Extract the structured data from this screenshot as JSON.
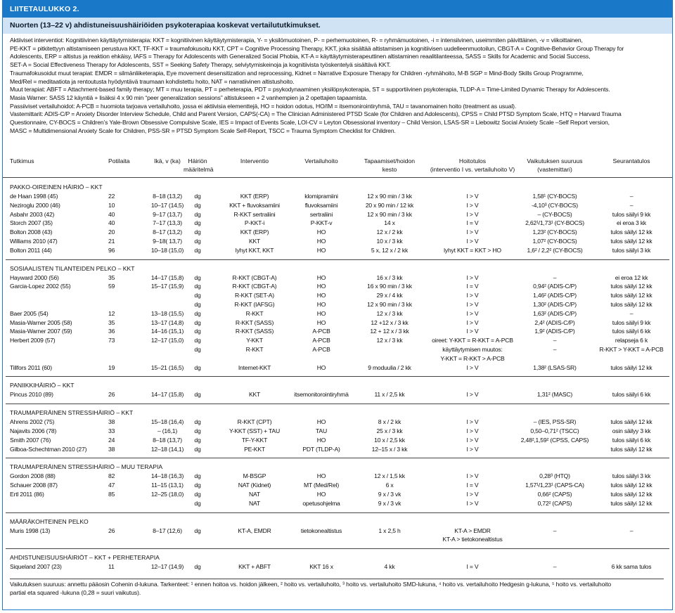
{
  "header": {
    "label": "LIITETAULUKKO 2."
  },
  "title": "Nuorten (13–22 v) ahdistuneisuushäiriöiden psykoterapiaa koskevat vertailututkimukset.",
  "abbreviations": [
    "Aktiiviset interventiot: Kognitiivinen käyttäytymisterapia: KKT = kognitiivinen käyttäytymisterapia, Y- = yksilömuotoinen,  P- = perhemuotoinen, R- = ryhmämuotoinen, -i = intensiivinen, useimmiten päivittäinen, -v = viikoittainen,",
    "PE-KKT = pitkitettyyn altistamiseen perustuva KKT, TF-KKT = traumafokusoitu KKT, CPT = Cognitive Processing Therapy, KKT, joka sisältää altistamisen ja kognitiivisen uudelleenmuotoilun, CBGT-A = Cognitive-Behavior Group Therapy for",
    "Adolescents, ERP = altistus ja reaktion ehkäisy, IAFS = Therapy for Adolescents with Generalized Social Phobia,  KT-A = käyttäytymisterapeuttinen altistaminen reaalitilanteessa, SASS = Skills for Academic and Social Success,",
    "SET-A = Social Effectiveness Therapy for Adolescents, SST = Seeking Safety Therapy, selviytymiskeinoja ja kognitiivista työskentelyä sisältävä KKT.",
    "Traumafokusoidut muut terapiat:  EMDR = silmänliiketerapia, Eye movement desensitization and reprocessing, Kidnet = Narrative Exposure Therapy for Children -ryhmähoito, M-B SGP = Mind-Body Skills Group Programme,",
    "Med/Rel = meditaatiota ja rentoutusta hyödyntävä traumaan kohdistettu hoito, NAT = narratiivinen altistushoito.",
    "Muut terapiat: ABFT = Attachment-based family therapy;  MT = muu terapia, PT = perheterapia, PDT = psykodynaaminen yksilöpsykoterapia, ST = supportiivinen psykoterapia, TLDP-A = Time-Limited Dynamic Therapy for Adolescents.",
    "Masia Warner: SASS 12 käyntiä + lisäksi 4 x 90 min “peer generalization sessions” altistukseen + 2 vanhempien ja 2 opettajien tapaamista.",
    "Passiiviset vertailuhoidot: A-PCB = huomiota tarjoava vertailuhoito, jossa ei aktiivisia elementtejä, HO = hoidon odotus, HO/IM = itsemonirointiryhmä, TAU = tavanomainen hoito (treatment as usual).",
    "Vastemittarit: ADIS-C/P = Anxiety Disorder Interview Schedule, Child and Parent Version, CAPS(-CA) = The Clinician Administered PTSD Scale (for Children and Adolescents), CPSS = Child PTSD Symptom Scale, HTQ = Harvard Trauma",
    "Questionnaire, CY-BOCS = Children’s Yale-Brown Obsessive Compulsive Scale, IES = Impact of Events Scale, LOI-CV = Leyton Obsessional inventory – Child Version, LSAS-SR = Liebowitz Social Anxiety Scale –Self Report version,",
    "MASC = Multidimensional Anxiety Scale for Children, PSS-SR = PTSD Symptom Scale Self-Report, TSCC = Trauma Symptom Checklist for Children."
  ],
  "table": {
    "headers": [
      {
        "l1": "Tutkimus",
        "l2": ""
      },
      {
        "l1": "Potilaita",
        "l2": ""
      },
      {
        "l1": "Ikä, v (ka)",
        "l2": ""
      },
      {
        "l1": "Häiriön",
        "l2": "määritelmä"
      },
      {
        "l1": "Interventio",
        "l2": ""
      },
      {
        "l1": "Vertailuhoito",
        "l2": ""
      },
      {
        "l1": "Tapaamiset/hoidon",
        "l2": "kesto"
      },
      {
        "l1": "Hoitotulos",
        "l2": "(interventio I vs. vertailuhoito V)"
      },
      {
        "l1": "Vaikutuksen suuruus",
        "l2": "(vastemittari)"
      },
      {
        "l1": "Seurantatulos",
        "l2": ""
      }
    ],
    "sections": [
      {
        "title": "PAKKO-OIREINEN HÄIRIÖ – KKT",
        "rows": [
          [
            "de Haan 1998 (45)",
            "22",
            "8–18 (13,2)",
            "dg",
            "KKT (ERP)",
            "klomipramiini",
            "12 x 90 min / 3 kk",
            "I > V",
            "1,58¹ (CY-BOCS)",
            "–"
          ],
          [
            "Neziroglu 2000 (46)",
            "10",
            "10–17 (14,5)",
            "dg",
            "KKT + fluvoksamiini",
            "fluvoksamiini",
            "20 x 90 min / 12 kk",
            "I > V",
            "-4,10³ (CY-BOCS)",
            "–"
          ],
          [
            "Asbahr 2003 (42)",
            "40",
            "9–17 (13,7)",
            "dg",
            "R-KKT sertraliini",
            "sertraliini",
            "12 x 90 min / 3 kk",
            "I > V",
            "– (CY-BOCS)",
            "tulos säilyi 9 kk"
          ],
          [
            "Storch 2007 (35)",
            "40",
            "7–17 (13,3)",
            "dg",
            "P-KKT-i",
            "P-KKT-v",
            "14 x",
            "I = V",
            "2,62¹/1,73¹ (CY-BOCS)",
            "ei eroa 3 kk"
          ],
          [
            "Bolton 2008 (43)",
            "20",
            "8–17 (13,2)",
            "dg",
            "KKT (ERP)",
            "HO",
            "12 x / 2 kk",
            "I > V",
            "1,23² (CY-BOCS)",
            "tulos säilyi 12 kk"
          ],
          [
            "Williams 2010 (47)",
            "21",
            "9–18( 13,7)",
            "dg",
            "KKT",
            "HO",
            "10 x / 3 kk",
            "I > V",
            "1,07² (CY-BOCS)",
            "tulos säilyi 12 kk"
          ],
          [
            "Bolton 2011 (44)",
            "96",
            "10–18 (15,0)",
            "dg",
            "lyhyt KKT, KKT",
            "HO",
            "5 x, 12 x / 2 kk",
            "lyhyt KKT = KKT > HO",
            "1,6² / 2,2² (CY-BOCS)",
            "tulos säilyi 3 kk"
          ]
        ]
      },
      {
        "title": "SOSIAALISTEN TILANTEIDEN PELKO – KKT",
        "rows": [
          [
            "Hayward 2000 (56)",
            "35",
            "14–17 (15,8)",
            "dg",
            "R-KKT (CBGT-A)",
            "HO",
            "16 x / 3 kk",
            "I > V",
            "–",
            "ei eroa 12 kk"
          ],
          [
            "Garcia-Lopez 2002 (55)",
            "59",
            "15–17 (15,9)",
            "dg",
            "R-KKT (CBGT-A)",
            "HO",
            "16 x 90 min / 3 kk",
            "I = V",
            "0,94² (ADIS-C/P)",
            "tulos säilyi 12 kk"
          ],
          [
            "",
            "",
            "",
            "dg",
            "R-KKT (SET-A)",
            "HO",
            "29 x  / 4 kk",
            "I > V",
            "1,46² (ADIS-C/P)",
            "tulos säilyi 12 kk"
          ],
          [
            "",
            "",
            "",
            "dg",
            "R-KKT (IAFSG)",
            "HO",
            "12 x 90 min / 3 kk",
            "I > V",
            "1,30² (ADIS-C/P)",
            "tulos säilyi 12 kk"
          ],
          [
            "Baer 2005 (54)",
            "12",
            "13–18 (15,5)",
            "dg",
            "R-KKT",
            "HO",
            "12 x / 3 kk",
            "I > V",
            "1,63² (ADIS-C/P)",
            "–"
          ],
          [
            "Masia-Warner 2005 (58)",
            "35",
            "13–17 (14,8)",
            "dg",
            "R-KKT (SASS)",
            "HO",
            "12 +12 x / 3 kk",
            "I > V",
            "2,4² (ADIS-C/P)",
            "tulos säilyi 9 kk"
          ],
          [
            "Masia-Warner 2007 (59)",
            "36",
            "14–16 (15,1)",
            "dg",
            "R-KKT (SASS)",
            "A-PCB",
            "12 + 12 x / 3 kk",
            "I > V",
            "1,9² (ADIS-C/P)",
            "tulos säilyi 6 kk"
          ],
          [
            "Herbert 2009 (57)",
            "73",
            "12–17 (15,0)",
            "dg",
            "Y-KKT",
            "A-PCB",
            "12 x / 3 kk",
            "oireet: Y-KKT = R-KKT = A-PCB",
            "–",
            "relapseja 6 k"
          ],
          [
            "",
            "",
            "",
            "dg",
            "R-KKT",
            "A-PCB",
            "",
            "käyttäytymisen muutos:",
            "–",
            "R-KKT > Y-KKT = A-PCB"
          ],
          [
            "",
            "",
            "",
            "",
            "",
            "",
            "",
            "Y-KKT = R-KKT > A-PCB",
            "",
            ""
          ],
          [
            "Tillfors 2011 (60)",
            "19",
            "15–21 (16,5)",
            "dg",
            "Internet-KKT",
            "HO",
            "9 moduulia / 2 kk",
            "I > V",
            "1,38² (LSAS-SR)",
            "tulos säilyi 12 kk"
          ]
        ]
      },
      {
        "title": "PANIIKKIHÄIRIÖ – KKT",
        "rows": [
          [
            "Pincus 2010 (89)",
            "26",
            "14–17 (15,8)",
            "dg",
            "KKT",
            "itsemonitorointiryhmä",
            "11 x / 2,5 kk",
            "I > V",
            "1,31² (MASC)",
            "tulos säilyi 6 kk"
          ]
        ]
      },
      {
        "title": "TRAUMAPERÄINEN STRESSIHÄIRIÖ – KKT",
        "rows": [
          [
            "Ahrens 2002 (75)",
            "38",
            "15–18 (16,4)",
            "dg",
            "R-KKT (CPT)",
            "HO",
            "8 x / 2 kk",
            "I > V",
            "– (IES, PSS-SR)",
            "tulos säilyi 12 kk"
          ],
          [
            "Najavits 2006 (78)",
            "33",
            "– (16,1)",
            "dg",
            "Y-KKT (SST) + TAU",
            "TAU",
            "25 x / 3 kk",
            "I > V",
            "0,50–0,71² (TSCC)",
            "osin säilyy 3 kk"
          ],
          [
            "Smith 2007 (76)",
            "24",
            "8–18 (13,7)",
            "dg",
            "TF-Y-KKT",
            "HO",
            "10 x / 2,5 kk",
            "I > V",
            "2,48²,1,59² (CPSS, CAPS)",
            "tulos säilyi 6 kk"
          ],
          [
            "Gilboa-Schechtman 2010 (27)",
            "38",
            "12–18 (14,1)",
            "dg",
            "PE-KKT",
            "PDT (TLDP-A)",
            "12–15 x / 3 kk",
            "I > V",
            "",
            "tulos säilyi 12 kk"
          ]
        ]
      },
      {
        "title": "TRAUMAPERÄINEN STRESSIHÄIRIÖ – MUU TERAPIA",
        "rows": [
          [
            "Gordon 2008 (88)",
            "82",
            "14–18 (16,3)",
            "dg",
            "M-BSGP",
            "HO",
            "12 x / 1,5 kk",
            "I > V",
            "0,28³ (HTQ)",
            "tulos säilyi 3 kk"
          ],
          [
            "Schauer 2008 (87)",
            "47",
            "11–15 (13,1)",
            "dg",
            "NAT (Kidnet)",
            "MT (Med/Rel)",
            "6 x",
            "I = V",
            "1,57¹/1,23¹ (CAPS-CA)",
            "tulos säilyi 12 kk"
          ],
          [
            "Ertl 2011 (86)",
            "85",
            "12–25 (18,0)",
            "dg",
            "NAT",
            "HO",
            "9 x / 3 vk",
            "I > V",
            "0,66² (CAPS)",
            "tulos säilyi 12 kk"
          ],
          [
            "",
            "",
            "",
            "dg",
            "NAT",
            "opetusohjelma",
            "9 x / 3 vk",
            "I > V",
            "0,72² (CAPS)",
            "tulos säilyi 12 kk"
          ]
        ]
      },
      {
        "title": "MÄÄRÄKOHTEINEN PELKO",
        "rows": [
          [
            "Muris 1998 (13)",
            "26",
            "8–17 (12,6)",
            "dg",
            "KT-A, EMDR",
            "tietokonealtistus",
            "1 x 2,5 h",
            "KT-A > EMDR",
            "–",
            "–"
          ],
          [
            "",
            "",
            "",
            "",
            "",
            "",
            "",
            "KT-A > tietokonealtistus",
            "",
            ""
          ]
        ]
      },
      {
        "title": "AHDISTUNEISUUSHÄIRIÖT – KKT + PERHETERAPIA",
        "rows": [
          [
            "Siqueland 2007 (23)",
            "11",
            "12–17 (14,9)",
            "dg",
            "KKT + ABFT",
            "KKT 16 x",
            "4 kk",
            "I = V",
            "–",
            "6 kk sama tulos"
          ]
        ]
      }
    ]
  },
  "footnote": [
    "Vaikutuksen suuruus: annettu pääosin Cohenin d-lukuna. Tarkenteet: ¹ ennen hoitoa vs. hoidon jälkeen, ² hoito vs. vertailuhoito, ³ hoito vs. vertailuhoito SMD-lukuna, ⁴ hoito vs. vertailuhoito Hedgesin g-lukuna, ⁵ hoito vs. vertailuhoito",
    "partial eta squared -lukuna (0,28 = suuri vaikutus)."
  ]
}
